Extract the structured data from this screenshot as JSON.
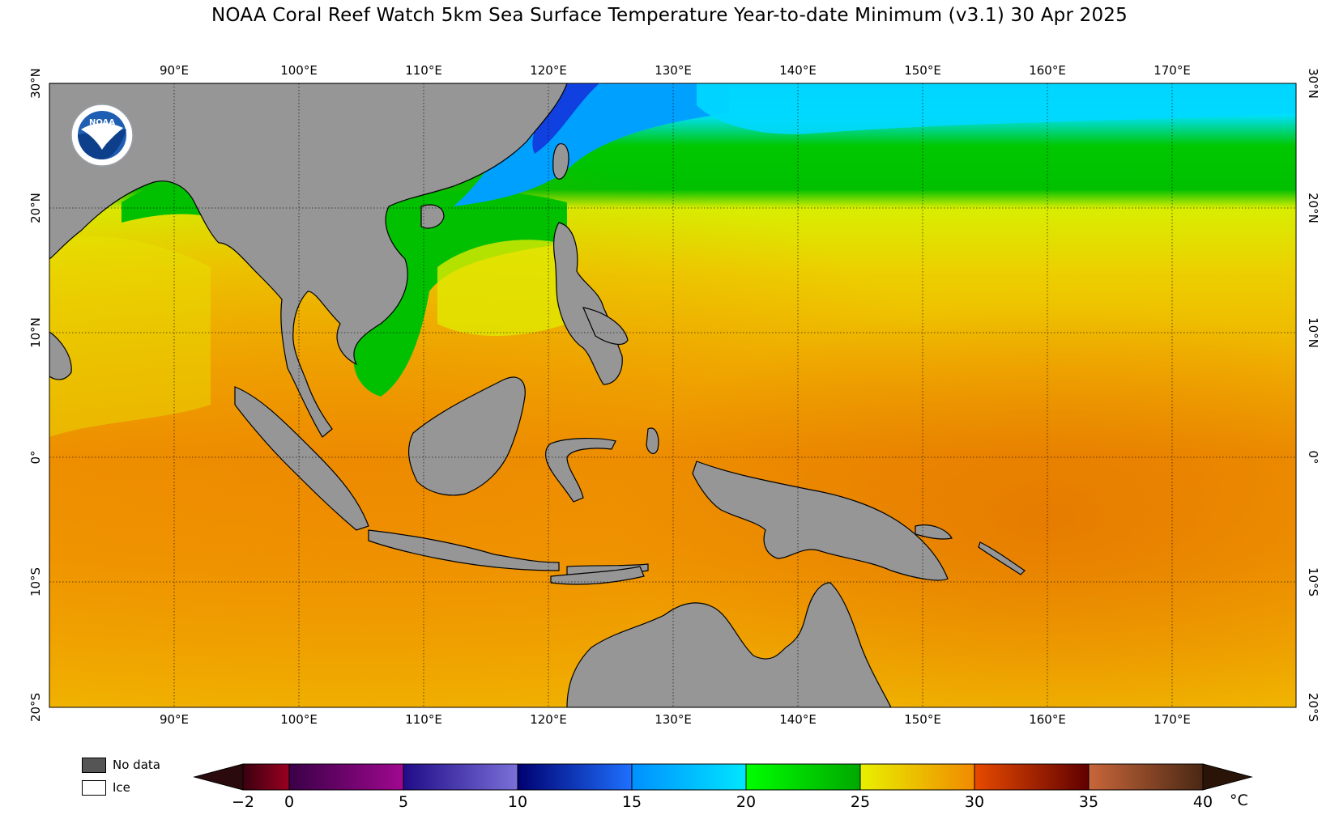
{
  "title": "NOAA Coral Reef Watch 5km Sea Surface Temperature Year-to-date Minimum  (v3.1)   30 Apr 2025",
  "map": {
    "lon_labels_top": [
      "90°E",
      "100°E",
      "110°E",
      "120°E",
      "130°E",
      "140°E",
      "150°E",
      "160°E",
      "170°E"
    ],
    "lon_labels_bottom": [
      "90°E",
      "100°E",
      "110°E",
      "120°E",
      "130°E",
      "140°E",
      "150°E",
      "160°E",
      "170°E"
    ],
    "lat_labels_left": [
      "30°N",
      "20°N",
      "10°N",
      "0°",
      "10°S",
      "20°S"
    ],
    "lat_labels_right": [
      "30°N",
      "20°N",
      "10°N",
      "0°",
      "10°S",
      "20°S"
    ],
    "lon_range": [
      80,
      180
    ],
    "lat_range": [
      -20,
      30
    ],
    "land_color": "#969696"
  },
  "logo": {
    "text": "NOAA"
  },
  "legend": {
    "no_data_label": "No data",
    "no_data_color": "#555555",
    "ice_label": "Ice",
    "ice_color": "#ffffff"
  },
  "colorbar": {
    "ticks": [
      "−2",
      "0",
      "5",
      "10",
      "15",
      "20",
      "25",
      "30",
      "35",
      "40"
    ],
    "unit": "°C",
    "range": [
      -2,
      40
    ],
    "colors": {
      "under": "#2a0a0c",
      "m2_0": [
        "#3a0010",
        "#9a0020"
      ],
      "0_5": [
        "#3a0048",
        "#a00890"
      ],
      "5_10": [
        "#200c88",
        "#7a70d8"
      ],
      "10_15": [
        "#000070",
        "#1e70ff"
      ],
      "15_20": [
        "#0090ff",
        "#00e6ff"
      ],
      "20_25": [
        "#00ff00",
        "#00a800"
      ],
      "25_30": [
        "#e8f000",
        "#f08a00"
      ],
      "30_35": [
        "#e84a00",
        "#600000"
      ],
      "35_40": [
        "#c8663a",
        "#4a2814"
      ],
      "over": "#2a1408"
    }
  }
}
